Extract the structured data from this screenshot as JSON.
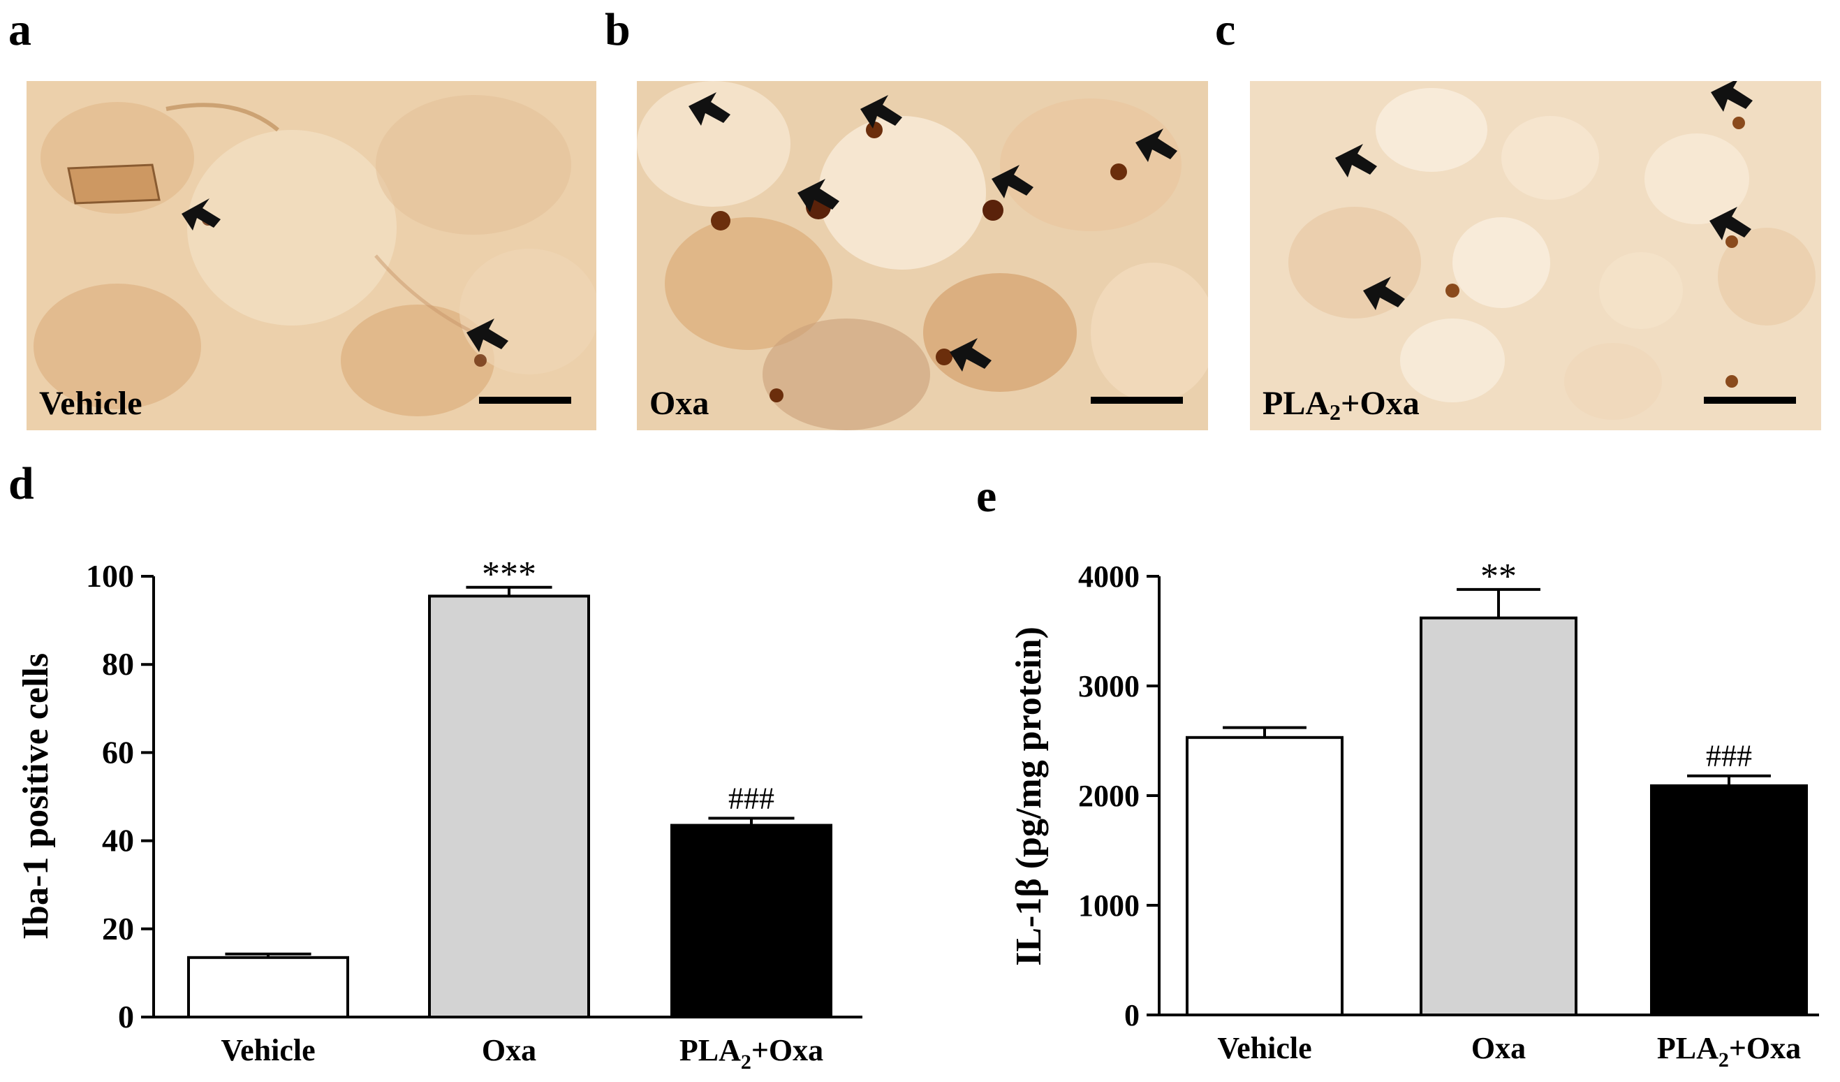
{
  "panels": {
    "a": {
      "letter": "a",
      "label": "Vehicle"
    },
    "b": {
      "letter": "b",
      "label": "Oxa"
    },
    "c": {
      "letter": "c",
      "label_main": "PLA",
      "label_sub": "2",
      "label_tail": "+Oxa"
    },
    "d": {
      "letter": "d"
    },
    "e": {
      "letter": "e"
    }
  },
  "colors": {
    "tissue_bg": "#eccfa8",
    "stain_dark": "#6b2e0c",
    "bar_vehicle": "#ffffff",
    "bar_oxa": "#d3d3d3",
    "bar_pla2oxa": "#000000"
  },
  "chart_data": [
    {
      "type": "bar",
      "id": "d",
      "title": "",
      "ylabel": "Iba-1  positive cells",
      "xlabel": "",
      "categories": [
        {
          "main": "Vehicle",
          "sub": "",
          "tail": ""
        },
        {
          "main": "Oxa",
          "sub": "",
          "tail": ""
        },
        {
          "main": "PLA",
          "sub": "2",
          "tail": "+Oxa"
        }
      ],
      "values": [
        13.5,
        95.5,
        43.5
      ],
      "errors": [
        0.8,
        2.0,
        1.6
      ],
      "annotations": [
        "",
        "***",
        "###"
      ],
      "bar_colors": [
        "#ffffff",
        "#d3d3d3",
        "#000000"
      ],
      "ylim": [
        0,
        100
      ],
      "yticks": [
        0,
        20,
        40,
        60,
        80,
        100
      ],
      "ytick_labels": [
        "0",
        "20",
        "40",
        "60",
        "80",
        "100"
      ]
    },
    {
      "type": "bar",
      "id": "e",
      "title": "",
      "ylabel": "IL-1β (pg/mg protein)",
      "xlabel": "",
      "categories": [
        {
          "main": "Vehicle",
          "sub": "",
          "tail": ""
        },
        {
          "main": "Oxa",
          "sub": "",
          "tail": ""
        },
        {
          "main": "PLA",
          "sub": "2",
          "tail": "+Oxa"
        }
      ],
      "values": [
        2530,
        3620,
        2090
      ],
      "errors": [
        90,
        260,
        90
      ],
      "annotations": [
        "",
        "**",
        "###"
      ],
      "bar_colors": [
        "#ffffff",
        "#d3d3d3",
        "#000000"
      ],
      "ylim": [
        0,
        4000
      ],
      "yticks": [
        0,
        1000,
        2000,
        3000,
        4000
      ],
      "ytick_labels": [
        "0",
        "1000",
        "2000",
        "3000",
        "4000"
      ]
    }
  ]
}
